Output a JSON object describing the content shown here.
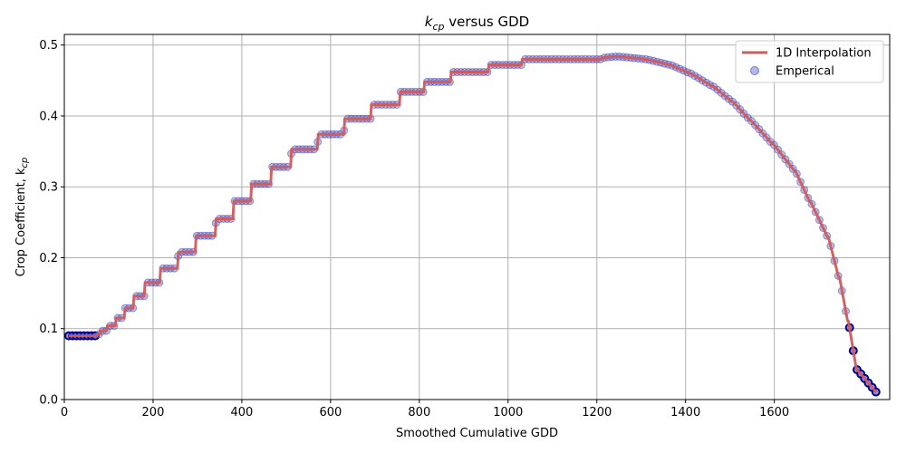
{
  "chart_data": {
    "type": "line",
    "title": "k_cp versus GDD",
    "title_main": "k",
    "title_sub": "cp",
    "title_rest": " versus GDD",
    "xlabel": "Smoothed Cumulative GDD",
    "ylabel_main": "Crop Coefficient, k",
    "ylabel_sub": "cp",
    "xlim": [
      0,
      1860
    ],
    "ylim": [
      0,
      0.515
    ],
    "xticks": [
      0,
      200,
      400,
      600,
      800,
      1000,
      1200,
      1400,
      1600
    ],
    "yticks": [
      0.0,
      0.1,
      0.2,
      0.3,
      0.4,
      0.5
    ],
    "ytick_labels": [
      "0.0",
      "0.1",
      "0.2",
      "0.3",
      "0.4",
      "0.5"
    ],
    "grid": true,
    "legend_position": "top-right",
    "colors": {
      "line": "#cd5c5c",
      "points_fill": "#7b7bd6",
      "points_edge": "#00008b"
    },
    "series": [
      {
        "name": "1D Interpolation",
        "kind": "line",
        "x": [
          10,
          70,
          72,
          80,
          82,
          95,
          97,
          115,
          117,
          135,
          137,
          155,
          157,
          180,
          182,
          215,
          217,
          255,
          257,
          295,
          297,
          340,
          342,
          380,
          382,
          420,
          422,
          465,
          467,
          510,
          512,
          570,
          572,
          630,
          632,
          690,
          692,
          755,
          757,
          810,
          812,
          870,
          872,
          955,
          957,
          1030,
          1032,
          1210,
          1212,
          1245,
          1247,
          1310,
          1312,
          1365,
          1367,
          1410,
          1412,
          1460,
          1462,
          1505,
          1507,
          1545,
          1547,
          1595,
          1597,
          1645,
          1647,
          1680,
          1682,
          1720,
          1722,
          1745,
          1747,
          1765,
          1767,
          1785,
          1787,
          1830
        ],
        "y": [
          0.09,
          0.09,
          0.092,
          0.092,
          0.097,
          0.097,
          0.104,
          0.104,
          0.115,
          0.115,
          0.129,
          0.129,
          0.146,
          0.146,
          0.165,
          0.165,
          0.185,
          0.185,
          0.208,
          0.208,
          0.231,
          0.231,
          0.255,
          0.255,
          0.28,
          0.28,
          0.304,
          0.304,
          0.328,
          0.328,
          0.353,
          0.353,
          0.374,
          0.374,
          0.396,
          0.396,
          0.416,
          0.416,
          0.434,
          0.434,
          0.448,
          0.448,
          0.462,
          0.462,
          0.472,
          0.472,
          0.48,
          0.48,
          0.482,
          0.484,
          0.484,
          0.48,
          0.48,
          0.472,
          0.472,
          0.46,
          0.46,
          0.442,
          0.442,
          0.42,
          0.42,
          0.394,
          0.394,
          0.361,
          0.361,
          0.323,
          0.323,
          0.279,
          0.279,
          0.229,
          0.229,
          0.172,
          0.172,
          0.111,
          0.111,
          0.042,
          0.042,
          0.01
        ]
      },
      {
        "name": "Emperical",
        "kind": "scatter",
        "spacing": 8.5
      }
    ]
  }
}
